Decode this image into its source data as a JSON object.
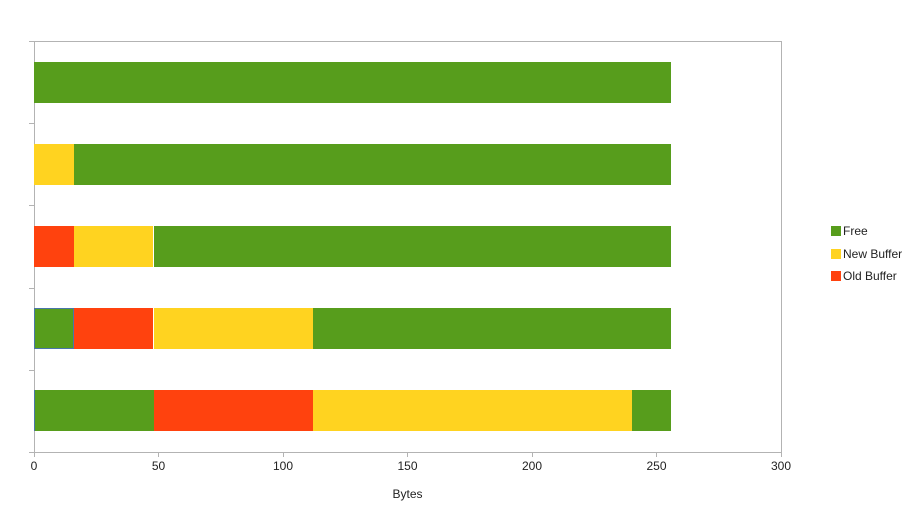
{
  "colors": {
    "free": "#579D1C",
    "new_buffer": "#FFD320",
    "old_buffer": "#FF420E",
    "axis": "#B3B3B3",
    "text": "#222222",
    "selection": "#4A76A8",
    "background": "#FFFFFF"
  },
  "chart_data": {
    "type": "bar",
    "orientation": "horizontal",
    "stacked": true,
    "title": "",
    "xlabel": "Bytes",
    "ylabel": "",
    "xlim": [
      0,
      300
    ],
    "xticks": [
      0,
      50,
      100,
      150,
      200,
      250,
      300
    ],
    "grid": false,
    "legend_position": "right",
    "legend": [
      {
        "label": "Free",
        "color_key": "free"
      },
      {
        "label": "New Buffer",
        "color_key": "new_buffer"
      },
      {
        "label": "Old Buffer",
        "color_key": "old_buffer"
      }
    ],
    "categories": [
      "",
      "",
      "",
      "",
      ""
    ],
    "rows": [
      {
        "segments": [
          {
            "series": "Free",
            "value": 256
          }
        ]
      },
      {
        "segments": [
          {
            "series": "New Buffer",
            "value": 16
          },
          {
            "series": "Free",
            "value": 240
          }
        ]
      },
      {
        "segments": [
          {
            "series": "Old Buffer",
            "value": 16
          },
          {
            "series": "New Buffer",
            "value": 32
          },
          {
            "series": "Free",
            "value": 208
          }
        ]
      },
      {
        "segments": [
          {
            "series": "Free",
            "value": 16,
            "selected": true
          },
          {
            "series": "Old Buffer",
            "value": 32
          },
          {
            "series": "New Buffer",
            "value": 64
          },
          {
            "series": "Free",
            "value": 144
          }
        ]
      },
      {
        "segments": [
          {
            "series": "Free",
            "value": 48,
            "selected_left_edge": true
          },
          {
            "series": "Old Buffer",
            "value": 64
          },
          {
            "series": "New Buffer",
            "value": 128
          },
          {
            "series": "Free",
            "value": 16
          }
        ]
      }
    ]
  }
}
